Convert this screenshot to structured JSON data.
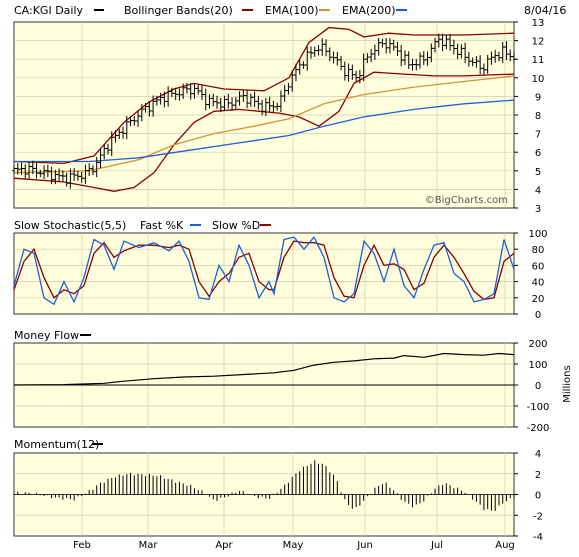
{
  "chart_data": {
    "type": "stock-technical",
    "date_label": "8/04/16",
    "x_tick_labels": [
      "Feb",
      "Mar",
      "Apr",
      "May",
      "Jun",
      "Jul",
      "Aug"
    ],
    "price_panel": {
      "ticker_label": "CA:KGI Daily",
      "legend": [
        {
          "name": "Bollinger Bands(20)",
          "color": "#8B0000"
        },
        {
          "name": "EMA(100)",
          "color": "#D2933A"
        },
        {
          "name": "EMA(200)",
          "color": "#1F5FD6"
        }
      ],
      "watermark": "©BigCharts.com",
      "ylim": [
        3,
        13
      ],
      "y_ticks": [
        3,
        4,
        5,
        6,
        7,
        8,
        9,
        10,
        11,
        12,
        13
      ],
      "close_series_color": "#000000",
      "keypoints": [
        {
          "x": 0.0,
          "close": 5.0
        },
        {
          "x": 0.025,
          "close": 5.1
        },
        {
          "x": 0.06,
          "close": 4.9
        },
        {
          "x": 0.1,
          "close": 4.6
        },
        {
          "x": 0.14,
          "close": 4.8
        },
        {
          "x": 0.16,
          "close": 5.2
        },
        {
          "x": 0.19,
          "close": 6.5
        },
        {
          "x": 0.22,
          "close": 7.3
        },
        {
          "x": 0.26,
          "close": 8.3
        },
        {
          "x": 0.3,
          "close": 9.0
        },
        {
          "x": 0.34,
          "close": 9.3
        },
        {
          "x": 0.36,
          "close": 9.4
        },
        {
          "x": 0.39,
          "close": 8.7
        },
        {
          "x": 0.43,
          "close": 8.6
        },
        {
          "x": 0.46,
          "close": 9.0
        },
        {
          "x": 0.5,
          "close": 8.4
        },
        {
          "x": 0.53,
          "close": 8.6
        },
        {
          "x": 0.55,
          "close": 9.8
        },
        {
          "x": 0.58,
          "close": 11.0
        },
        {
          "x": 0.61,
          "close": 11.7
        },
        {
          "x": 0.635,
          "close": 11.2
        },
        {
          "x": 0.66,
          "close": 10.4
        },
        {
          "x": 0.685,
          "close": 10.0
        },
        {
          "x": 0.71,
          "close": 11.3
        },
        {
          "x": 0.74,
          "close": 11.9
        },
        {
          "x": 0.765,
          "close": 11.5
        },
        {
          "x": 0.79,
          "close": 10.7
        },
        {
          "x": 0.82,
          "close": 11.0
        },
        {
          "x": 0.85,
          "close": 12.1
        },
        {
          "x": 0.88,
          "close": 11.6
        },
        {
          "x": 0.91,
          "close": 11.0
        },
        {
          "x": 0.935,
          "close": 10.5
        },
        {
          "x": 0.96,
          "close": 11.2
        },
        {
          "x": 0.98,
          "close": 11.4
        },
        {
          "x": 1.0,
          "close": 11.1
        }
      ],
      "bb_upper": [
        {
          "x": 0.0,
          "y": 5.5
        },
        {
          "x": 0.1,
          "y": 5.4
        },
        {
          "x": 0.16,
          "y": 5.8
        },
        {
          "x": 0.22,
          "y": 7.6
        },
        {
          "x": 0.27,
          "y": 8.7
        },
        {
          "x": 0.32,
          "y": 9.4
        },
        {
          "x": 0.36,
          "y": 9.7
        },
        {
          "x": 0.42,
          "y": 9.4
        },
        {
          "x": 0.5,
          "y": 9.3
        },
        {
          "x": 0.55,
          "y": 10.0
        },
        {
          "x": 0.59,
          "y": 11.9
        },
        {
          "x": 0.63,
          "y": 12.7
        },
        {
          "x": 0.67,
          "y": 12.6
        },
        {
          "x": 0.7,
          "y": 12.2
        },
        {
          "x": 0.75,
          "y": 12.4
        },
        {
          "x": 0.8,
          "y": 12.3
        },
        {
          "x": 0.85,
          "y": 12.3
        },
        {
          "x": 0.9,
          "y": 12.3
        },
        {
          "x": 1.0,
          "y": 12.4
        }
      ],
      "bb_lower": [
        {
          "x": 0.0,
          "y": 4.6
        },
        {
          "x": 0.1,
          "y": 4.4
        },
        {
          "x": 0.16,
          "y": 4.1
        },
        {
          "x": 0.2,
          "y": 3.9
        },
        {
          "x": 0.24,
          "y": 4.1
        },
        {
          "x": 0.28,
          "y": 4.9
        },
        {
          "x": 0.32,
          "y": 6.4
        },
        {
          "x": 0.36,
          "y": 7.6
        },
        {
          "x": 0.4,
          "y": 8.2
        },
        {
          "x": 0.45,
          "y": 8.3
        },
        {
          "x": 0.53,
          "y": 8.1
        },
        {
          "x": 0.57,
          "y": 7.9
        },
        {
          "x": 0.61,
          "y": 7.4
        },
        {
          "x": 0.65,
          "y": 8.2
        },
        {
          "x": 0.68,
          "y": 9.7
        },
        {
          "x": 0.72,
          "y": 10.3
        },
        {
          "x": 0.78,
          "y": 10.2
        },
        {
          "x": 0.84,
          "y": 10.1
        },
        {
          "x": 0.9,
          "y": 10.1
        },
        {
          "x": 1.0,
          "y": 10.2
        }
      ],
      "ema100": [
        {
          "x": 0.0,
          "y": 4.9
        },
        {
          "x": 0.15,
          "y": 5.0
        },
        {
          "x": 0.25,
          "y": 5.6
        },
        {
          "x": 0.32,
          "y": 6.4
        },
        {
          "x": 0.4,
          "y": 7.0
        },
        {
          "x": 0.48,
          "y": 7.4
        },
        {
          "x": 0.55,
          "y": 7.8
        },
        {
          "x": 0.62,
          "y": 8.6
        },
        {
          "x": 0.7,
          "y": 9.1
        },
        {
          "x": 0.8,
          "y": 9.5
        },
        {
          "x": 0.9,
          "y": 9.8
        },
        {
          "x": 1.0,
          "y": 10.1
        }
      ],
      "ema200": [
        {
          "x": 0.0,
          "y": 5.5
        },
        {
          "x": 0.15,
          "y": 5.5
        },
        {
          "x": 0.25,
          "y": 5.7
        },
        {
          "x": 0.35,
          "y": 6.1
        },
        {
          "x": 0.45,
          "y": 6.5
        },
        {
          "x": 0.55,
          "y": 6.9
        },
        {
          "x": 0.62,
          "y": 7.4
        },
        {
          "x": 0.7,
          "y": 7.9
        },
        {
          "x": 0.8,
          "y": 8.3
        },
        {
          "x": 0.9,
          "y": 8.6
        },
        {
          "x": 1.0,
          "y": 8.8
        }
      ]
    },
    "stochastic_panel": {
      "label": "Slow Stochastic(5,5)",
      "legend": [
        {
          "name": "Fast %K",
          "color": "#1F5FD6"
        },
        {
          "name": "Slow %D",
          "color": "#8B0000"
        }
      ],
      "ylim": [
        0,
        100
      ],
      "y_ticks": [
        0,
        20,
        40,
        60,
        80,
        100
      ],
      "fast_k": [
        {
          "x": 0.0,
          "y": 35
        },
        {
          "x": 0.02,
          "y": 80
        },
        {
          "x": 0.04,
          "y": 75
        },
        {
          "x": 0.06,
          "y": 20
        },
        {
          "x": 0.08,
          "y": 12
        },
        {
          "x": 0.1,
          "y": 40
        },
        {
          "x": 0.12,
          "y": 15
        },
        {
          "x": 0.14,
          "y": 45
        },
        {
          "x": 0.16,
          "y": 92
        },
        {
          "x": 0.18,
          "y": 85
        },
        {
          "x": 0.2,
          "y": 55
        },
        {
          "x": 0.22,
          "y": 90
        },
        {
          "x": 0.25,
          "y": 82
        },
        {
          "x": 0.28,
          "y": 88
        },
        {
          "x": 0.31,
          "y": 78
        },
        {
          "x": 0.33,
          "y": 90
        },
        {
          "x": 0.35,
          "y": 65
        },
        {
          "x": 0.37,
          "y": 20
        },
        {
          "x": 0.39,
          "y": 18
        },
        {
          "x": 0.41,
          "y": 60
        },
        {
          "x": 0.43,
          "y": 40
        },
        {
          "x": 0.45,
          "y": 85
        },
        {
          "x": 0.47,
          "y": 60
        },
        {
          "x": 0.49,
          "y": 20
        },
        {
          "x": 0.51,
          "y": 40
        },
        {
          "x": 0.52,
          "y": 25
        },
        {
          "x": 0.54,
          "y": 92
        },
        {
          "x": 0.56,
          "y": 95
        },
        {
          "x": 0.58,
          "y": 80
        },
        {
          "x": 0.6,
          "y": 95
        },
        {
          "x": 0.62,
          "y": 70
        },
        {
          "x": 0.64,
          "y": 20
        },
        {
          "x": 0.66,
          "y": 15
        },
        {
          "x": 0.68,
          "y": 25
        },
        {
          "x": 0.7,
          "y": 90
        },
        {
          "x": 0.72,
          "y": 75
        },
        {
          "x": 0.74,
          "y": 40
        },
        {
          "x": 0.76,
          "y": 80
        },
        {
          "x": 0.78,
          "y": 35
        },
        {
          "x": 0.8,
          "y": 20
        },
        {
          "x": 0.82,
          "y": 55
        },
        {
          "x": 0.84,
          "y": 85
        },
        {
          "x": 0.86,
          "y": 88
        },
        {
          "x": 0.88,
          "y": 50
        },
        {
          "x": 0.9,
          "y": 40
        },
        {
          "x": 0.92,
          "y": 15
        },
        {
          "x": 0.94,
          "y": 18
        },
        {
          "x": 0.96,
          "y": 25
        },
        {
          "x": 0.98,
          "y": 92
        },
        {
          "x": 1.0,
          "y": 55
        }
      ],
      "slow_d": [
        {
          "x": 0.0,
          "y": 30
        },
        {
          "x": 0.02,
          "y": 65
        },
        {
          "x": 0.04,
          "y": 80
        },
        {
          "x": 0.06,
          "y": 45
        },
        {
          "x": 0.08,
          "y": 20
        },
        {
          "x": 0.1,
          "y": 30
        },
        {
          "x": 0.12,
          "y": 25
        },
        {
          "x": 0.14,
          "y": 35
        },
        {
          "x": 0.16,
          "y": 75
        },
        {
          "x": 0.18,
          "y": 88
        },
        {
          "x": 0.2,
          "y": 70
        },
        {
          "x": 0.22,
          "y": 78
        },
        {
          "x": 0.25,
          "y": 85
        },
        {
          "x": 0.28,
          "y": 85
        },
        {
          "x": 0.31,
          "y": 82
        },
        {
          "x": 0.33,
          "y": 85
        },
        {
          "x": 0.35,
          "y": 80
        },
        {
          "x": 0.37,
          "y": 40
        },
        {
          "x": 0.39,
          "y": 22
        },
        {
          "x": 0.41,
          "y": 40
        },
        {
          "x": 0.43,
          "y": 50
        },
        {
          "x": 0.45,
          "y": 70
        },
        {
          "x": 0.47,
          "y": 75
        },
        {
          "x": 0.49,
          "y": 40
        },
        {
          "x": 0.51,
          "y": 30
        },
        {
          "x": 0.52,
          "y": 30
        },
        {
          "x": 0.54,
          "y": 70
        },
        {
          "x": 0.56,
          "y": 90
        },
        {
          "x": 0.58,
          "y": 88
        },
        {
          "x": 0.6,
          "y": 88
        },
        {
          "x": 0.62,
          "y": 85
        },
        {
          "x": 0.64,
          "y": 45
        },
        {
          "x": 0.66,
          "y": 22
        },
        {
          "x": 0.68,
          "y": 20
        },
        {
          "x": 0.7,
          "y": 60
        },
        {
          "x": 0.72,
          "y": 85
        },
        {
          "x": 0.74,
          "y": 60
        },
        {
          "x": 0.76,
          "y": 62
        },
        {
          "x": 0.78,
          "y": 55
        },
        {
          "x": 0.8,
          "y": 30
        },
        {
          "x": 0.82,
          "y": 38
        },
        {
          "x": 0.84,
          "y": 70
        },
        {
          "x": 0.86,
          "y": 85
        },
        {
          "x": 0.88,
          "y": 70
        },
        {
          "x": 0.9,
          "y": 50
        },
        {
          "x": 0.92,
          "y": 28
        },
        {
          "x": 0.94,
          "y": 18
        },
        {
          "x": 0.96,
          "y": 20
        },
        {
          "x": 0.98,
          "y": 65
        },
        {
          "x": 1.0,
          "y": 75
        }
      ]
    },
    "money_flow_panel": {
      "label": "Money Flow",
      "y_axis_label": "Millions",
      "ylim": [
        -200,
        200
      ],
      "y_ticks": [
        200,
        100,
        0,
        -100,
        -200
      ],
      "zero_line": 0,
      "series": [
        {
          "x": 0.0,
          "y": 0
        },
        {
          "x": 0.1,
          "y": 2
        },
        {
          "x": 0.18,
          "y": 8
        },
        {
          "x": 0.22,
          "y": 18
        },
        {
          "x": 0.28,
          "y": 30
        },
        {
          "x": 0.34,
          "y": 38
        },
        {
          "x": 0.4,
          "y": 42
        },
        {
          "x": 0.46,
          "y": 50
        },
        {
          "x": 0.52,
          "y": 58
        },
        {
          "x": 0.56,
          "y": 70
        },
        {
          "x": 0.6,
          "y": 95
        },
        {
          "x": 0.64,
          "y": 108
        },
        {
          "x": 0.68,
          "y": 115
        },
        {
          "x": 0.72,
          "y": 125
        },
        {
          "x": 0.76,
          "y": 128
        },
        {
          "x": 0.78,
          "y": 140
        },
        {
          "x": 0.82,
          "y": 132
        },
        {
          "x": 0.86,
          "y": 150
        },
        {
          "x": 0.9,
          "y": 145
        },
        {
          "x": 0.94,
          "y": 142
        },
        {
          "x": 0.97,
          "y": 150
        },
        {
          "x": 1.0,
          "y": 145
        }
      ]
    },
    "momentum_panel": {
      "label": "Momentum(12)",
      "ylim": [
        -4,
        4
      ],
      "y_ticks": [
        4,
        2,
        0,
        -2,
        -4
      ],
      "bars": [
        {
          "x": 0.0,
          "y": 0.2
        },
        {
          "x": 0.04,
          "y": 0.1
        },
        {
          "x": 0.08,
          "y": -0.3
        },
        {
          "x": 0.12,
          "y": -0.5
        },
        {
          "x": 0.15,
          "y": 0.3
        },
        {
          "x": 0.17,
          "y": 1.0
        },
        {
          "x": 0.2,
          "y": 1.7
        },
        {
          "x": 0.23,
          "y": 2.0
        },
        {
          "x": 0.26,
          "y": 1.9
        },
        {
          "x": 0.29,
          "y": 1.8
        },
        {
          "x": 0.32,
          "y": 1.3
        },
        {
          "x": 0.35,
          "y": 0.9
        },
        {
          "x": 0.38,
          "y": 0.2
        },
        {
          "x": 0.4,
          "y": -0.6
        },
        {
          "x": 0.42,
          "y": -0.3
        },
        {
          "x": 0.45,
          "y": 0.4
        },
        {
          "x": 0.48,
          "y": -0.2
        },
        {
          "x": 0.51,
          "y": -0.4
        },
        {
          "x": 0.54,
          "y": 0.8
        },
        {
          "x": 0.57,
          "y": 2.3
        },
        {
          "x": 0.6,
          "y": 3.2
        },
        {
          "x": 0.62,
          "y": 2.9
        },
        {
          "x": 0.645,
          "y": 1.5
        },
        {
          "x": 0.66,
          "y": -0.5
        },
        {
          "x": 0.68,
          "y": -1.5
        },
        {
          "x": 0.7,
          "y": -0.6
        },
        {
          "x": 0.72,
          "y": 0.5
        },
        {
          "x": 0.74,
          "y": 1.2
        },
        {
          "x": 0.76,
          "y": 0.4
        },
        {
          "x": 0.78,
          "y": -0.7
        },
        {
          "x": 0.8,
          "y": -1.2
        },
        {
          "x": 0.82,
          "y": -0.6
        },
        {
          "x": 0.84,
          "y": 0.5
        },
        {
          "x": 0.86,
          "y": 1.1
        },
        {
          "x": 0.88,
          "y": 0.7
        },
        {
          "x": 0.9,
          "y": 0.3
        },
        {
          "x": 0.92,
          "y": -0.5
        },
        {
          "x": 0.94,
          "y": -1.4
        },
        {
          "x": 0.96,
          "y": -1.6
        },
        {
          "x": 0.98,
          "y": -0.7
        },
        {
          "x": 1.0,
          "y": -0.3
        }
      ]
    },
    "colors": {
      "plot_bg": "#FFFFDD",
      "grid": "#CFCFB0",
      "border": "#333333",
      "price": "#000000",
      "bb": "#8B0000",
      "ema100": "#D2933A",
      "ema200": "#1F5FD6",
      "fastk": "#1F5FD6",
      "slowd": "#8B0000",
      "mf": "#000000",
      "mom": "#000000"
    }
  }
}
